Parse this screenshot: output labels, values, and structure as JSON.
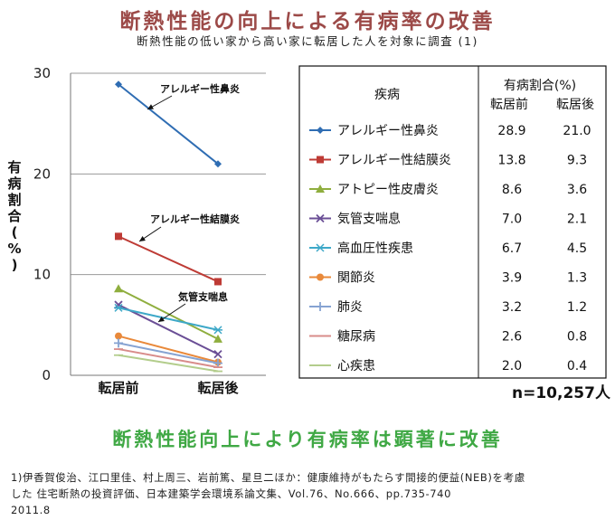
{
  "header": {
    "title": "断熱性能の向上による有病率の改善",
    "subtitle": "断熱性能の低い家から高い家に転居した人を対象に調査 (1)"
  },
  "chart_data": {
    "type": "line",
    "ylabel": "有病割合(%)",
    "ylim": [
      0,
      30
    ],
    "yticks": [
      0,
      10,
      20,
      30
    ],
    "categories": [
      "転居前",
      "転居後"
    ],
    "grid": true,
    "series": [
      {
        "name": "アレルギー性鼻炎",
        "values": [
          28.9,
          21.0
        ],
        "color": "#2f6db3",
        "marker": "diamond"
      },
      {
        "name": "アレルギー性結膜炎",
        "values": [
          13.8,
          9.3
        ],
        "color": "#be3b35",
        "marker": "square"
      },
      {
        "name": "アトピー性皮膚炎",
        "values": [
          8.6,
          3.6
        ],
        "color": "#8fae3e",
        "marker": "triangle"
      },
      {
        "name": "気管支喘息",
        "values": [
          7.0,
          2.1
        ],
        "color": "#6b4f96",
        "marker": "x"
      },
      {
        "name": "高血圧性疾患",
        "values": [
          6.7,
          4.5
        ],
        "color": "#3da8c8",
        "marker": "star"
      },
      {
        "name": "関節炎",
        "values": [
          3.9,
          1.3
        ],
        "color": "#e9893a",
        "marker": "circle"
      },
      {
        "name": "肺炎",
        "values": [
          3.2,
          1.2
        ],
        "color": "#86a3d2",
        "marker": "plus"
      },
      {
        "name": "糖尿病",
        "values": [
          2.6,
          0.8
        ],
        "color": "#d88c8a",
        "marker": "dash"
      },
      {
        "name": "心疾患",
        "values": [
          2.0,
          0.4
        ],
        "color": "#b3cd8c",
        "marker": "dash"
      }
    ],
    "annotations": [
      "アレルギー性鼻炎",
      "アレルギー性結膜炎",
      "気管支喘息"
    ],
    "table": {
      "col_disease": "疾病",
      "col_group": "有病割合(%)",
      "col_before": "転居前",
      "col_after": "転居後",
      "before_values": [
        "28.9",
        "13.8",
        "8.6",
        "7.0",
        "6.7",
        "3.9",
        "3.2",
        "2.6",
        "2.0"
      ],
      "after_values": [
        "21.0",
        "9.3",
        "3.6",
        "2.1",
        "4.5",
        "1.3",
        "1.2",
        "0.8",
        "0.4"
      ]
    },
    "n_label": "n=10,257人"
  },
  "conclusion": "断熱性能向上により有病率は顕著に改善",
  "reference": {
    "line1": "1)伊香賀俊治、江口里佳、村上周三、岩前篤、星旦二ほか：健康維持がもたらす間接的便益(NEB)を考慮",
    "line2": "した 住宅断熱の投資評価、日本建築学会環境系論文集、Vol.76、No.666、pp.735-740",
    "line3": "2011.8"
  }
}
